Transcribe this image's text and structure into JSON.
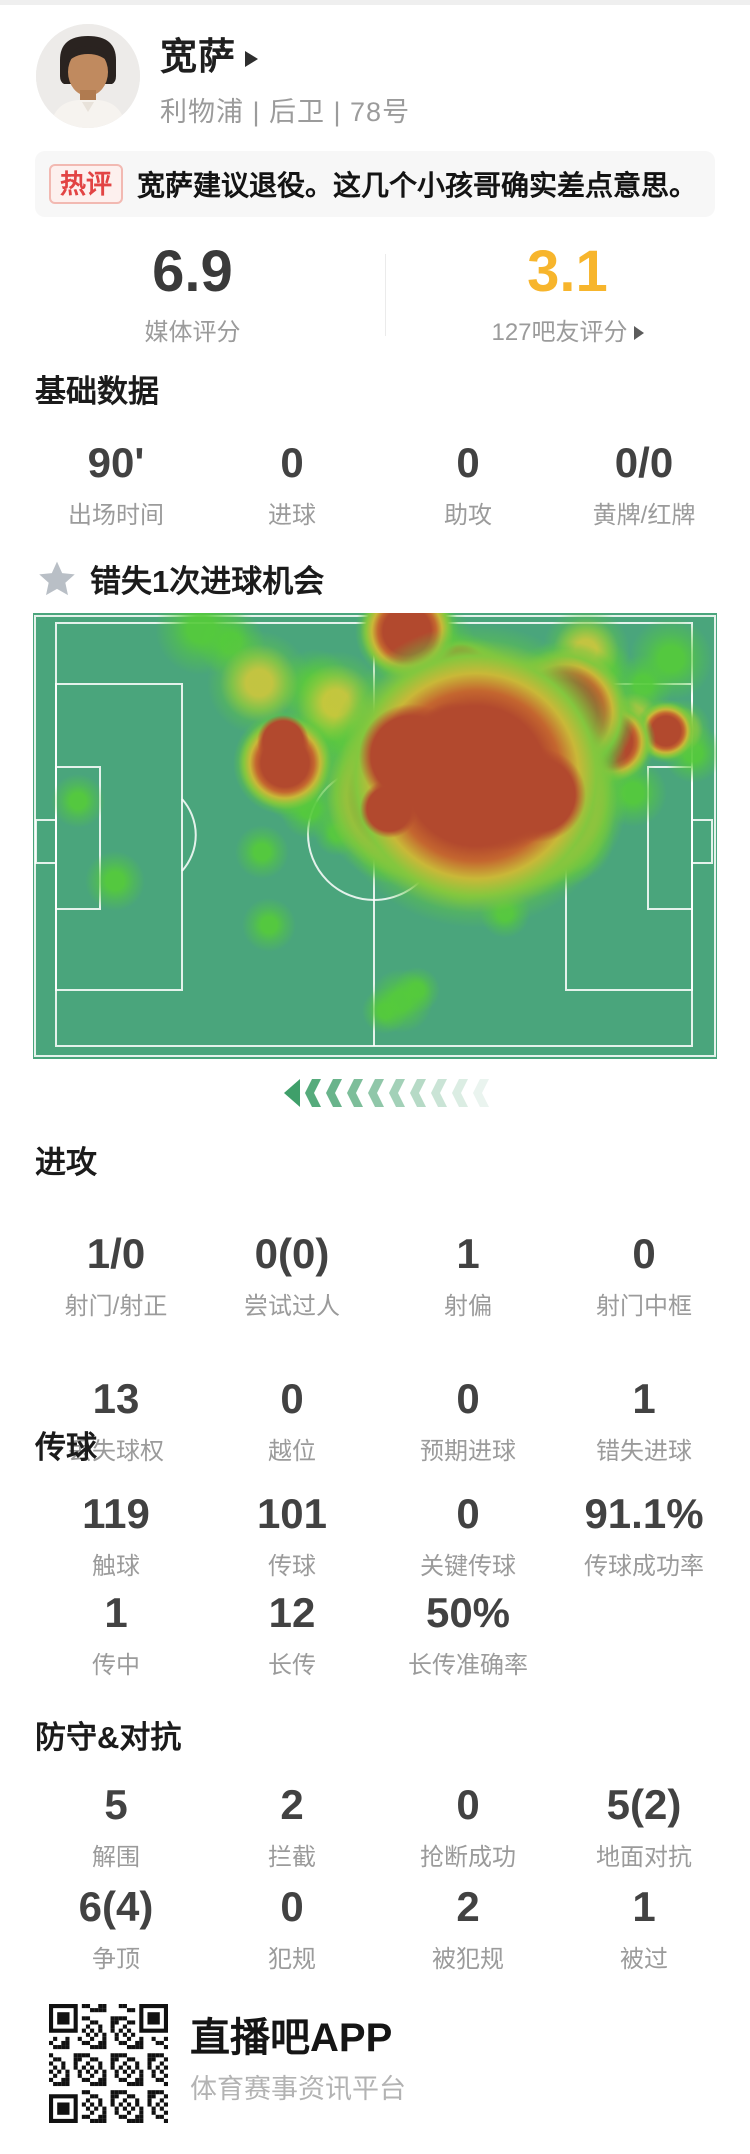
{
  "header": {
    "player_name": "宽萨",
    "team_position": "利物浦 | 后卫 | 78号"
  },
  "hot_comment": {
    "badge": "热评",
    "text": "宽萨建议退役。这几个小孩哥确实差点意思。"
  },
  "ratings": {
    "media": {
      "value": "6.9",
      "label": "媒体评分"
    },
    "fans": {
      "value": "3.1",
      "label": "127吧友评分",
      "accent": "#f7b52c"
    }
  },
  "highlight": {
    "text": "错失1次进球机会"
  },
  "stats": {
    "basic": {
      "title": "基础数据",
      "row1": [
        {
          "v": "90'",
          "l": "出场时间"
        },
        {
          "v": "0",
          "l": "进球"
        },
        {
          "v": "0",
          "l": "助攻"
        },
        {
          "v": "0/0",
          "l": "黄牌/红牌"
        }
      ]
    },
    "attack": {
      "title": "进攻",
      "row1": [
        {
          "v": "1/0",
          "l": "射门/射正"
        },
        {
          "v": "0(0)",
          "l": "尝试过人"
        },
        {
          "v": "1",
          "l": "射偏"
        },
        {
          "v": "0",
          "l": "射门中框"
        }
      ],
      "row2": [
        {
          "v": "13",
          "l": "丢失球权"
        },
        {
          "v": "0",
          "l": "越位"
        },
        {
          "v": "0",
          "l": "预期进球"
        },
        {
          "v": "1",
          "l": "错失进球"
        }
      ]
    },
    "passing": {
      "title": "传球",
      "row1": [
        {
          "v": "119",
          "l": "触球"
        },
        {
          "v": "101",
          "l": "传球"
        },
        {
          "v": "0",
          "l": "关键传球"
        },
        {
          "v": "91.1%",
          "l": "传球成功率"
        }
      ],
      "row2": [
        {
          "v": "1",
          "l": "传中"
        },
        {
          "v": "12",
          "l": "长传"
        },
        {
          "v": "50%",
          "l": "长传准确率"
        }
      ]
    },
    "defense": {
      "title": "防守&对抗",
      "row1": [
        {
          "v": "5",
          "l": "解围"
        },
        {
          "v": "2",
          "l": "拦截"
        },
        {
          "v": "0",
          "l": "抢断成功"
        },
        {
          "v": "5(2)",
          "l": "地面对抗"
        }
      ],
      "row2": [
        {
          "v": "6(4)",
          "l": "争顶"
        },
        {
          "v": "0",
          "l": "犯规"
        },
        {
          "v": "2",
          "l": "被犯规"
        },
        {
          "v": "1",
          "l": "被过"
        }
      ]
    }
  },
  "heatmap": {
    "base_color": "#4aa57c",
    "line_color": "rgba(255,255,255,0.85)",
    "blobs": [
      [
        "core",
        420,
        128,
        30
      ],
      [
        "core",
        378,
        143,
        40
      ],
      [
        "core",
        427,
        152,
        46
      ],
      [
        "core",
        470,
        178,
        46
      ],
      [
        "core",
        506,
        182,
        36
      ],
      [
        "core",
        356,
        196,
        22
      ],
      [
        "hot",
        443,
        163,
        76
      ],
      [
        "hot",
        376,
        182,
        46
      ],
      [
        "hot",
        498,
        188,
        48
      ],
      [
        "hot",
        374,
        18,
        26
      ],
      [
        "core",
        428,
        60,
        22
      ],
      [
        "hot",
        426,
        80,
        30
      ],
      [
        "hot",
        531,
        100,
        36
      ],
      [
        "hot",
        579,
        129,
        22
      ],
      [
        "hot",
        633,
        118,
        16
      ],
      [
        "core",
        250,
        128,
        20
      ],
      [
        "hot",
        252,
        150,
        26
      ],
      [
        "warm",
        226,
        70,
        26
      ],
      [
        "warm",
        553,
        38,
        22
      ],
      [
        "warm",
        600,
        107,
        18
      ],
      [
        "warm",
        648,
        116,
        15
      ],
      [
        "warm",
        537,
        227,
        22
      ],
      [
        "warm",
        505,
        122,
        22
      ],
      [
        "warm",
        551,
        158,
        20
      ],
      [
        "warm",
        303,
        90,
        26
      ],
      [
        "green",
        168,
        16,
        24
      ],
      [
        "green",
        198,
        30,
        18
      ],
      [
        "green",
        400,
        30,
        22
      ],
      [
        "green",
        410,
        52,
        18
      ],
      [
        "green",
        282,
        74,
        20
      ],
      [
        "green",
        316,
        120,
        22
      ],
      [
        "green",
        292,
        112,
        18
      ],
      [
        "green",
        638,
        46,
        22
      ],
      [
        "green",
        610,
        72,
        16
      ],
      [
        "green",
        572,
        58,
        16
      ],
      [
        "green",
        660,
        140,
        16
      ],
      [
        "green",
        45,
        188,
        14
      ],
      [
        "green",
        82,
        268,
        16
      ],
      [
        "green",
        229,
        239,
        14
      ],
      [
        "green",
        236,
        312,
        14
      ],
      [
        "green",
        304,
        220,
        12
      ],
      [
        "green",
        356,
        240,
        16
      ],
      [
        "green",
        430,
        268,
        13
      ],
      [
        "green",
        472,
        300,
        13
      ],
      [
        "green",
        600,
        180,
        18
      ],
      [
        "green",
        450,
        226,
        16
      ],
      [
        "green",
        277,
        196,
        16
      ],
      [
        "green",
        260,
        182,
        14
      ],
      [
        "green",
        498,
        226,
        14
      ],
      [
        "green",
        368,
        388,
        17
      ],
      [
        "green",
        352,
        398,
        12
      ],
      [
        "green",
        384,
        377,
        12
      ]
    ]
  },
  "chevrons": {
    "color": "#3f9f6a",
    "count": 10
  },
  "footer": {
    "app": "直播吧APP",
    "tagline": "体育赛事资讯平台"
  }
}
